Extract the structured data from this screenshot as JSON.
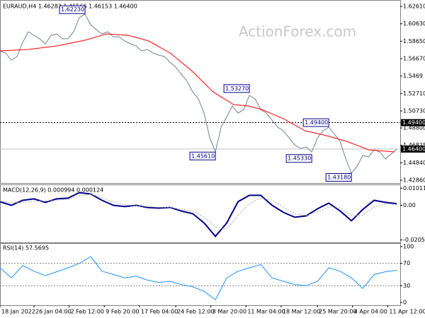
{
  "chart_data": [
    {
      "type": "line",
      "title": "EURAUD,H4  1.46283 1.46566 1.46153 1.46400",
      "watermark": "ActionForex.com",
      "xlim": [
        0,
        353
      ],
      "ylim": [
        1.4262,
        1.6309
      ],
      "yticks": [
        {
          "value": 1.6261,
          "label": "1.62610"
        },
        {
          "value": 1.6063,
          "label": "1.60630"
        },
        {
          "value": 1.5865,
          "label": "1.58650"
        },
        {
          "value": 1.5667,
          "label": "1.56670"
        },
        1.5469,
        {
          "value": 1.5271,
          "label": "1.52710"
        },
        {
          "value": 1.5073,
          "label": "1.50730"
        },
        {
          "value": 1.488,
          "label": "1.48800"
        },
        1.46825,
        {
          "value": 1.4484,
          "label": "1.44840"
        },
        {
          "value": 1.4286,
          "label": "1.42860"
        }
      ],
      "series": [
        {
          "color": "#708090",
          "x": [
            0,
            5,
            10,
            15,
            20,
            25,
            30,
            35,
            40,
            45,
            50,
            55,
            60,
            65,
            70,
            75,
            80,
            85,
            90,
            95,
            100,
            105,
            110,
            115,
            120,
            125,
            130,
            135,
            140,
            145,
            150,
            155,
            160,
            165,
            170,
            175,
            180,
            185,
            190,
            195,
            200,
            205,
            210,
            215,
            220,
            225,
            230,
            235,
            240,
            245,
            250,
            255,
            260,
            265,
            270,
            275,
            280,
            285,
            290,
            295,
            300,
            305,
            310,
            315,
            320,
            325,
            330,
            335,
            340,
            345,
            350
          ],
          "values": [
            1.5755,
            1.5731,
            1.5651,
            1.5691,
            1.5851,
            1.5972,
            1.5932,
            1.5892,
            1.5835,
            1.5932,
            1.5948,
            1.5892,
            1.5892,
            1.5972,
            1.6133,
            1.6173,
            1.6052,
            1.5996,
            1.5948,
            1.5972,
            1.5916,
            1.5916,
            1.5867,
            1.5835,
            1.5811,
            1.5755,
            1.5771,
            1.5731,
            1.5707,
            1.5691,
            1.5627,
            1.557,
            1.549,
            1.541,
            1.5289,
            1.5209,
            1.5048,
            1.4767,
            1.4607,
            1.4888,
            1.5008,
            1.5129,
            1.5048,
            1.5089,
            1.5249,
            1.5209,
            1.5089,
            1.5048,
            1.4968,
            1.4888,
            1.4848,
            1.4767,
            1.4687,
            1.4647,
            1.4663,
            1.4607,
            1.4767,
            1.4848,
            1.4888,
            1.4808,
            1.4727,
            1.4527,
            1.4366,
            1.4446,
            1.4567,
            1.4551,
            1.4631,
            1.4607,
            1.4527,
            1.4583,
            1.464
          ]
        },
        {
          "color": "#ff0000",
          "x": [
            0,
            25,
            50,
            75,
            94,
            113,
            131,
            150,
            169,
            188,
            206,
            219,
            231,
            250,
            269,
            288,
            306,
            325,
            348
          ],
          "values": [
            1.5755,
            1.5771,
            1.5811,
            1.5876,
            1.5948,
            1.5932,
            1.5868,
            1.5731,
            1.553,
            1.5289,
            1.5145,
            1.5129,
            1.5089,
            1.4984,
            1.4848,
            1.4792,
            1.4727,
            1.4631,
            1.4607
          ]
        }
      ],
      "price_lines": [
        {
          "value": 1.494,
          "label": "1.49400",
          "style": "dotted"
        },
        {
          "value": 1.464,
          "label": "1.46400",
          "style": "solid"
        }
      ],
      "annotations": [
        {
          "x": 75,
          "value": 1.6223,
          "label": "1.62230"
        },
        {
          "x": 220,
          "value": 1.5327,
          "label": "1.53270"
        },
        {
          "x": 290,
          "value": 1.494,
          "label": "1.49400"
        },
        {
          "x": 190,
          "value": 1.4561,
          "label": "1.45610"
        },
        {
          "x": 275,
          "value": 1.4533,
          "label": "1.45330"
        },
        {
          "x": 310,
          "value": 1.4318,
          "label": "1.43180"
        }
      ]
    },
    {
      "type": "line",
      "title": "MACD(12,26,9) 0.000994 0.000124",
      "xlim": [
        0,
        353
      ],
      "ylim": [
        -0.022,
        0.0115
      ],
      "yticks": [
        0.010113,
        {
          "value": 0,
          "label": "0.00"
        },
        -0.020561
      ],
      "series": [
        {
          "color": "#00008b",
          "x": [
            0,
            10,
            20,
            30,
            40,
            50,
            60,
            70,
            80,
            90,
            100,
            110,
            120,
            130,
            140,
            150,
            160,
            170,
            180,
            190,
            200,
            210,
            220,
            230,
            240,
            250,
            260,
            270,
            280,
            290,
            300,
            310,
            320,
            330,
            340,
            350
          ],
          "values": [
            0.0021,
            0.0,
            0.0029,
            0.0038,
            0.0017,
            0.0038,
            0.0042,
            0.0075,
            0.0067,
            0.0029,
            0.0,
            -0.0008,
            0.0,
            -0.0013,
            -0.0017,
            -0.0013,
            -0.0034,
            -0.005,
            -0.0105,
            -0.0184,
            -0.0105,
            0.0021,
            0.0059,
            0.0059,
            0.0,
            -0.0042,
            -0.0071,
            -0.0063,
            -0.0021,
            0.0013,
            -0.0034,
            -0.0092,
            -0.0025,
            0.0029,
            0.0017,
            0.000994
          ]
        },
        {
          "color": "#a9a9a9",
          "dash": true,
          "x": [
            0,
            10,
            20,
            30,
            40,
            50,
            60,
            70,
            80,
            90,
            100,
            110,
            120,
            130,
            140,
            150,
            160,
            170,
            180,
            190,
            200,
            210,
            220,
            230,
            240,
            250,
            260,
            270,
            280,
            290,
            300,
            310,
            320,
            330,
            340,
            350
          ],
          "values": [
            0.0025,
            0.0015,
            0.0015,
            0.0025,
            0.0025,
            0.003,
            0.0035,
            0.0055,
            0.0065,
            0.0045,
            0.002,
            0.0002,
            -0.0003,
            -0.0008,
            -0.0012,
            -0.0014,
            -0.0022,
            -0.0035,
            -0.007,
            -0.013,
            -0.014,
            -0.006,
            0.001,
            0.0045,
            0.003,
            -0.001,
            -0.005,
            -0.006,
            -0.004,
            -0.001,
            -0.0015,
            -0.006,
            -0.006,
            -0.001,
            0.001,
            0.000124
          ]
        }
      ]
    },
    {
      "type": "line",
      "title": "RSI(14) 57.5695",
      "xlim": [
        0,
        353
      ],
      "ylim": [
        -5,
        105
      ],
      "yticks": [
        100,
        70,
        30,
        0
      ],
      "levels": [
        70,
        30
      ],
      "xticks": [
        {
          "value": 0,
          "label": "18 Jan 2022"
        },
        {
          "value": 30,
          "label": "26 Jan 04:00"
        },
        {
          "value": 61,
          "label": "2 Feb 12:00"
        },
        {
          "value": 92,
          "label": "9 Feb 20:00"
        },
        {
          "value": 123,
          "label": "17 Feb 04:00"
        },
        {
          "value": 155,
          "label": "24 Feb 12:00"
        },
        {
          "value": 186,
          "label": "3 Mar 20:00"
        },
        {
          "value": 217,
          "label": "11 Mar 04:00"
        },
        {
          "value": 248,
          "label": "18 Mar 12:00"
        },
        {
          "value": 280,
          "label": "25 Mar 20:00"
        },
        {
          "value": 311,
          "label": "4 Apr 04:00"
        },
        {
          "value": 342,
          "label": "11 Apr 12:00"
        }
      ],
      "series": [
        {
          "color": "#1e90ff",
          "x": [
            0,
            10,
            20,
            30,
            40,
            50,
            60,
            70,
            80,
            90,
            100,
            110,
            120,
            130,
            140,
            150,
            160,
            170,
            180,
            190,
            200,
            210,
            220,
            230,
            240,
            250,
            260,
            270,
            280,
            290,
            300,
            310,
            320,
            330,
            340,
            350
          ],
          "values": [
            62,
            44,
            66,
            56,
            48,
            55,
            62,
            70,
            82,
            56,
            50,
            44,
            47,
            40,
            36,
            38,
            32,
            28,
            20,
            5,
            44,
            56,
            62,
            68,
            44,
            38,
            32,
            30,
            38,
            62,
            56,
            44,
            25,
            50,
            55,
            57.5695
          ]
        }
      ]
    }
  ]
}
